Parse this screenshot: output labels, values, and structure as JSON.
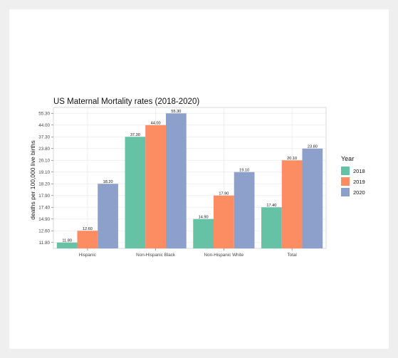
{
  "chart_data": {
    "type": "bar",
    "title": "US Maternal Mortality rates (2018-2020)",
    "xlabel": "",
    "ylabel": "deaths per 100,000 live births",
    "categories": [
      "Hispanic",
      "Non-Hispanic Black",
      "Non-Hispanic White",
      "Total"
    ],
    "yticks": [
      "11.80",
      "12.60",
      "14.90",
      "17.40",
      "17.90",
      "18.20",
      "19.10",
      "20.10",
      "23.80",
      "37.30",
      "44.00",
      "55.30"
    ],
    "series": [
      {
        "name": "2018",
        "color": "#66c2a5",
        "values": [
          11.8,
          37.3,
          14.9,
          17.4
        ],
        "labels": [
          "11.80",
          "37.30",
          "14.90",
          "17.40"
        ]
      },
      {
        "name": "2019",
        "color": "#fc8d62",
        "values": [
          12.6,
          44.0,
          17.9,
          20.1
        ],
        "labels": [
          "12.60",
          "44.00",
          "17.90",
          "20.10"
        ]
      },
      {
        "name": "2020",
        "color": "#8da0cb",
        "values": [
          18.2,
          55.3,
          19.1,
          23.8
        ],
        "labels": [
          "18.20",
          "55.30",
          "19.10",
          "23.80"
        ]
      }
    ],
    "legend": {
      "title": "Year",
      "position": "right"
    },
    "grid": true
  }
}
